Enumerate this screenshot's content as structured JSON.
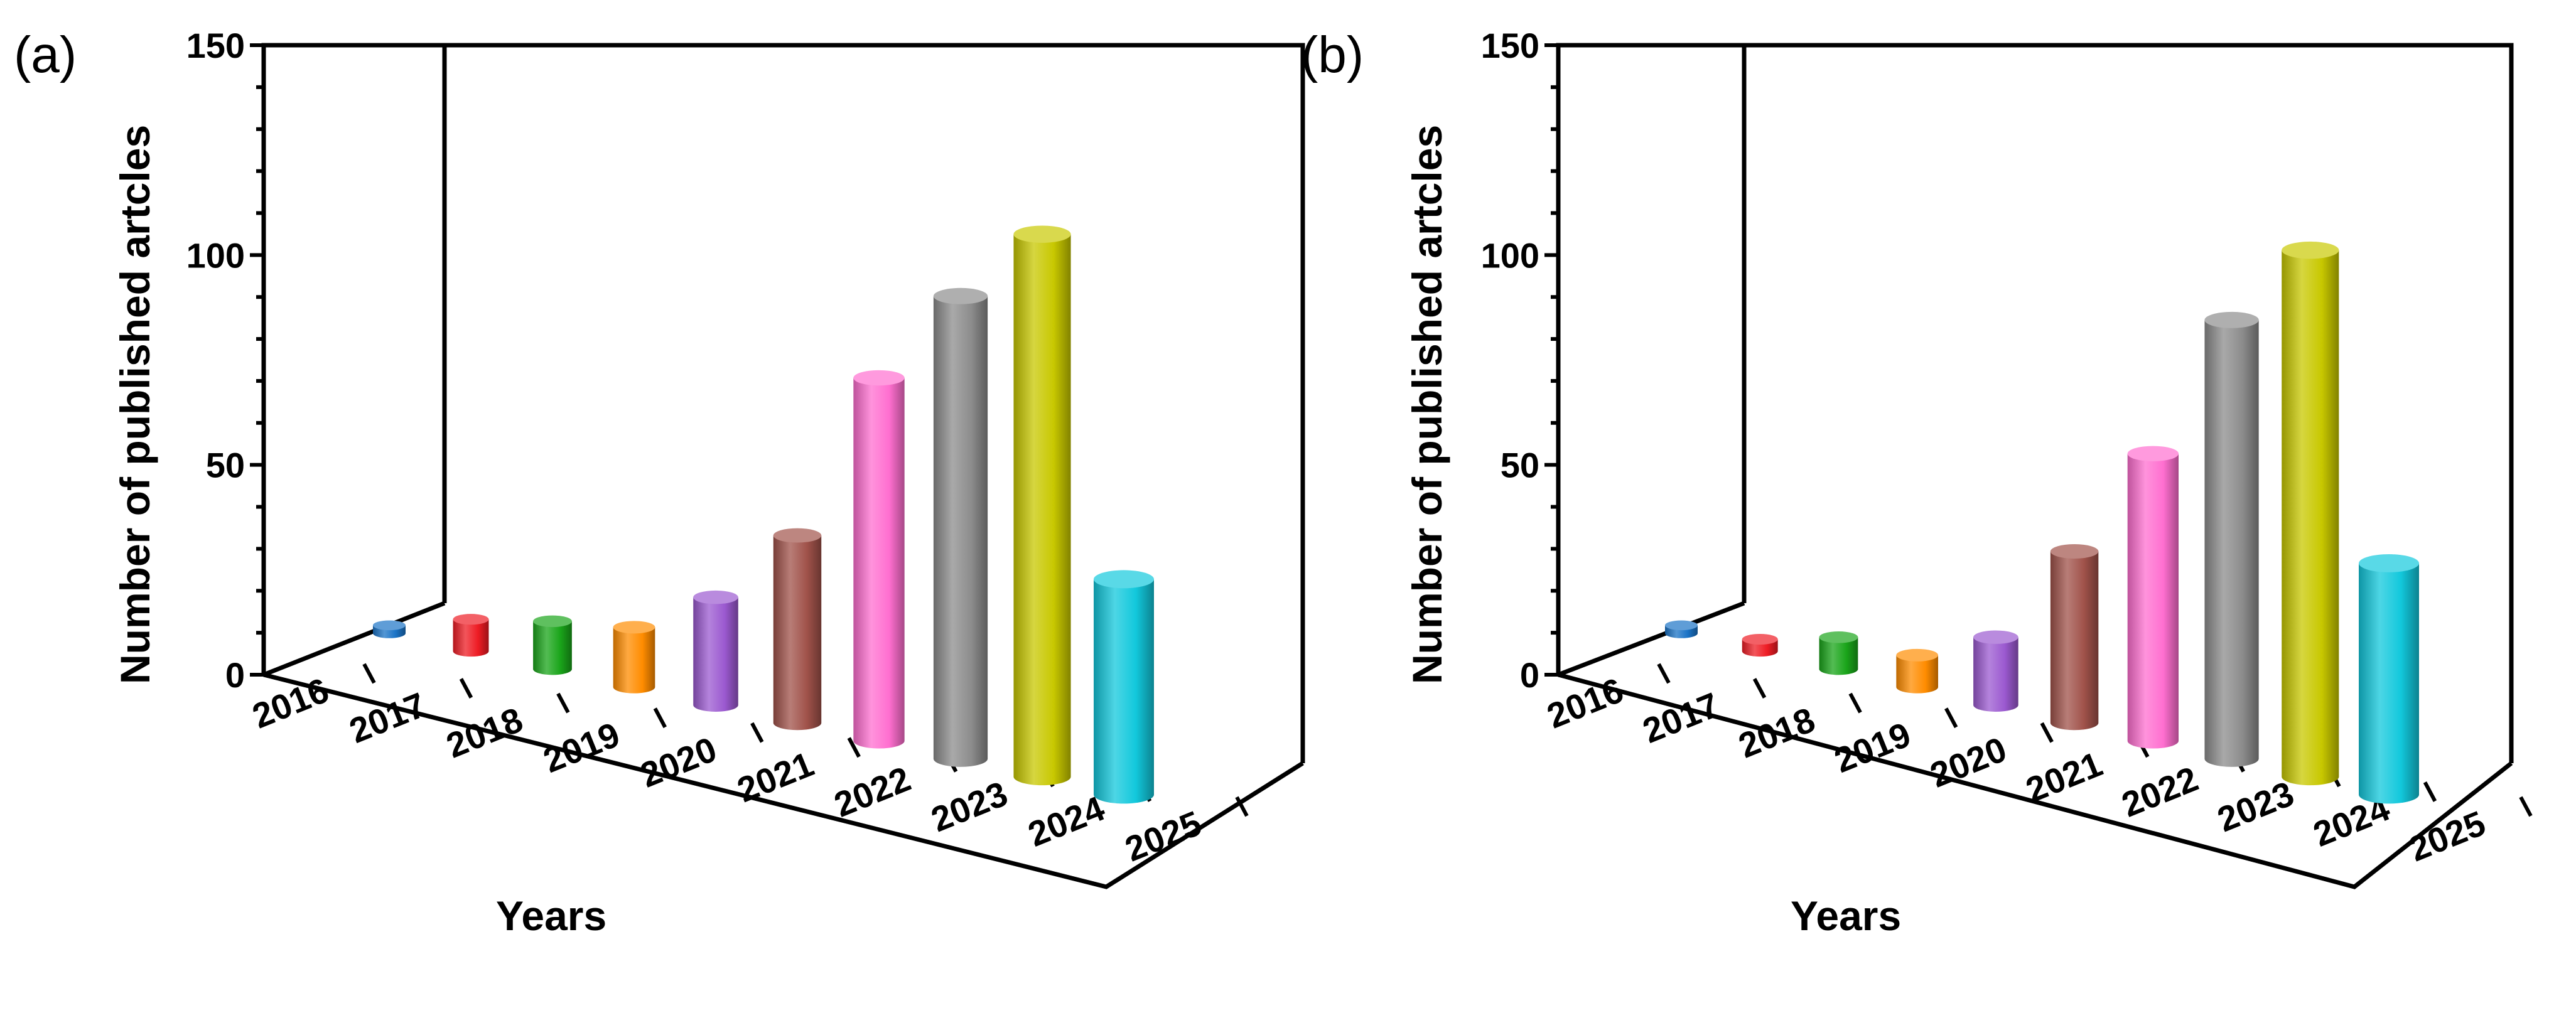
{
  "chart_data": [
    {
      "type": "bar",
      "panel": "(a)",
      "categories": [
        "2016",
        "2017",
        "2018",
        "2019",
        "2020",
        "2021",
        "2022",
        "2023",
        "2024",
        "2025"
      ],
      "values": [
        2,
        8,
        12,
        15,
        27,
        47,
        91,
        116,
        136,
        54
      ],
      "colors": [
        "#1a73c6",
        "#ee1c24",
        "#1aa51a",
        "#ff8c00",
        "#9b59d0",
        "#a0524a",
        "#ff6fd0",
        "#8c8c8c",
        "#c8c800",
        "#12c8dc"
      ],
      "xlabel": "Years",
      "ylabel": "Number of published artcles",
      "ylim": [
        0,
        150
      ],
      "yticks": [
        "0",
        "50",
        "100",
        "150"
      ]
    },
    {
      "type": "bar",
      "panel": "(b)",
      "categories": [
        "2016",
        "2017",
        "2018",
        "2019",
        "2020",
        "2021",
        "2022",
        "2023",
        "2024",
        "2025"
      ],
      "values": [
        2,
        3,
        8,
        8,
        17,
        43,
        72,
        110,
        132,
        58
      ],
      "colors": [
        "#1a73c6",
        "#ee1c24",
        "#1aa51a",
        "#ff8c00",
        "#9b59d0",
        "#a0524a",
        "#ff6fd0",
        "#8c8c8c",
        "#c8c800",
        "#12c8dc"
      ],
      "xlabel": "Years",
      "ylabel": "Number of published artcles",
      "ylim": [
        0,
        150
      ],
      "yticks": [
        "0",
        "50",
        "100",
        "150"
      ]
    }
  ]
}
